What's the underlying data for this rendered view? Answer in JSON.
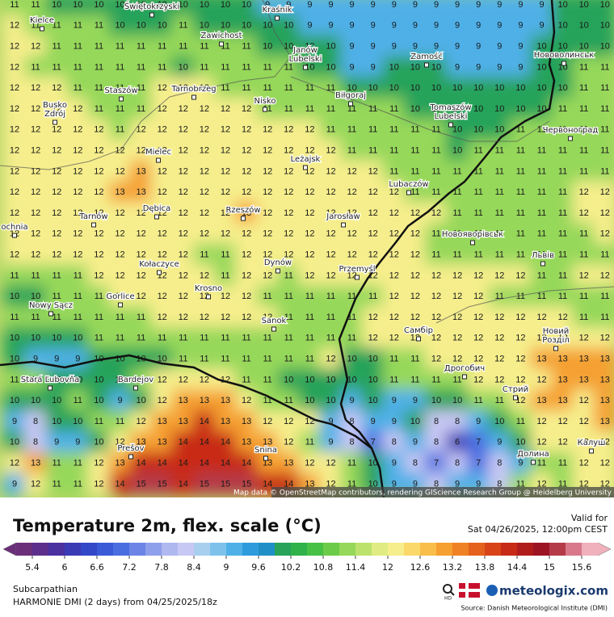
{
  "map": {
    "grid_values": [
      [
        11,
        11,
        10,
        10,
        10,
        10,
        10,
        10,
        10,
        10,
        10,
        10,
        9,
        9,
        9,
        9,
        9,
        9,
        9,
        9,
        9,
        9,
        9,
        9,
        9,
        9,
        10,
        10,
        10
      ],
      [
        12,
        11,
        11,
        11,
        11,
        10,
        10,
        10,
        11,
        10,
        10,
        10,
        10,
        10,
        9,
        9,
        9,
        9,
        9,
        9,
        9,
        9,
        9,
        9,
        9,
        9,
        10,
        10,
        10
      ],
      [
        12,
        12,
        11,
        11,
        11,
        11,
        11,
        11,
        11,
        11,
        11,
        11,
        10,
        10,
        10,
        10,
        9,
        9,
        9,
        9,
        9,
        9,
        9,
        9,
        9,
        10,
        10,
        10,
        10
      ],
      [
        12,
        11,
        11,
        11,
        11,
        11,
        11,
        11,
        10,
        11,
        11,
        11,
        11,
        11,
        10,
        10,
        9,
        9,
        10,
        10,
        10,
        9,
        9,
        9,
        9,
        10,
        10,
        11,
        11
      ],
      [
        12,
        12,
        12,
        11,
        11,
        11,
        11,
        12,
        12,
        12,
        11,
        11,
        11,
        11,
        11,
        11,
        10,
        10,
        10,
        10,
        10,
        10,
        10,
        10,
        10,
        10,
        10,
        11,
        11
      ],
      [
        12,
        12,
        12,
        12,
        11,
        11,
        11,
        12,
        12,
        12,
        12,
        12,
        11,
        11,
        11,
        11,
        11,
        11,
        11,
        10,
        10,
        10,
        10,
        10,
        10,
        10,
        11,
        11,
        11
      ],
      [
        12,
        12,
        12,
        12,
        12,
        11,
        12,
        12,
        12,
        12,
        12,
        12,
        12,
        12,
        12,
        11,
        11,
        11,
        11,
        11,
        11,
        10,
        10,
        10,
        11,
        11,
        11,
        11,
        11
      ],
      [
        12,
        12,
        12,
        12,
        12,
        12,
        12,
        12,
        12,
        12,
        12,
        12,
        12,
        12,
        12,
        12,
        11,
        11,
        11,
        11,
        11,
        10,
        11,
        11,
        11,
        11,
        11,
        11,
        11
      ],
      [
        12,
        12,
        12,
        12,
        12,
        12,
        13,
        12,
        12,
        12,
        12,
        12,
        12,
        12,
        12,
        12,
        12,
        12,
        11,
        11,
        11,
        11,
        11,
        11,
        11,
        11,
        11,
        11,
        11
      ],
      [
        12,
        12,
        12,
        12,
        12,
        13,
        13,
        12,
        12,
        12,
        12,
        12,
        12,
        12,
        12,
        12,
        12,
        12,
        12,
        11,
        11,
        11,
        11,
        11,
        11,
        11,
        11,
        12,
        12
      ],
      [
        12,
        12,
        12,
        12,
        12,
        12,
        12,
        12,
        12,
        12,
        12,
        13,
        12,
        12,
        12,
        12,
        12,
        12,
        12,
        12,
        12,
        11,
        11,
        11,
        11,
        11,
        11,
        12,
        12
      ],
      [
        12,
        12,
        12,
        12,
        12,
        12,
        12,
        12,
        12,
        12,
        12,
        12,
        12,
        12,
        12,
        12,
        12,
        12,
        12,
        12,
        11,
        11,
        11,
        11,
        11,
        11,
        11,
        11,
        12
      ],
      [
        12,
        12,
        12,
        12,
        12,
        12,
        12,
        12,
        12,
        11,
        11,
        12,
        12,
        12,
        12,
        12,
        12,
        12,
        12,
        12,
        11,
        11,
        11,
        11,
        11,
        11,
        11,
        11,
        11
      ],
      [
        11,
        11,
        11,
        11,
        12,
        12,
        12,
        12,
        12,
        12,
        11,
        12,
        12,
        11,
        12,
        12,
        12,
        12,
        12,
        12,
        12,
        12,
        12,
        12,
        12,
        11,
        11,
        12,
        12
      ],
      [
        10,
        10,
        11,
        11,
        11,
        12,
        12,
        12,
        12,
        12,
        12,
        12,
        11,
        11,
        11,
        11,
        11,
        11,
        12,
        12,
        12,
        12,
        12,
        11,
        11,
        11,
        11,
        11,
        11
      ],
      [
        11,
        11,
        11,
        11,
        11,
        11,
        11,
        12,
        12,
        12,
        12,
        12,
        12,
        11,
        11,
        11,
        11,
        12,
        12,
        12,
        12,
        12,
        12,
        12,
        12,
        12,
        12,
        11,
        11
      ],
      [
        10,
        10,
        10,
        10,
        11,
        11,
        11,
        11,
        11,
        11,
        11,
        11,
        11,
        11,
        11,
        11,
        11,
        12,
        12,
        12,
        12,
        12,
        12,
        12,
        12,
        12,
        12,
        12,
        12
      ],
      [
        10,
        9,
        9,
        9,
        10,
        10,
        10,
        10,
        11,
        11,
        11,
        11,
        11,
        11,
        11,
        12,
        10,
        10,
        11,
        11,
        12,
        12,
        12,
        12,
        12,
        13,
        13,
        13,
        13
      ],
      [
        11,
        11,
        10,
        10,
        10,
        10,
        11,
        12,
        12,
        12,
        12,
        11,
        11,
        10,
        10,
        10,
        10,
        10,
        11,
        11,
        11,
        11,
        12,
        12,
        12,
        12,
        13,
        13,
        13
      ],
      [
        10,
        10,
        10,
        11,
        10,
        9,
        10,
        12,
        13,
        13,
        13,
        12,
        11,
        11,
        10,
        10,
        9,
        10,
        9,
        9,
        10,
        10,
        11,
        11,
        12,
        13,
        13,
        12,
        13
      ],
      [
        9,
        8,
        10,
        10,
        11,
        11,
        12,
        13,
        13,
        14,
        13,
        13,
        12,
        12,
        12,
        9,
        8,
        9,
        9,
        10,
        8,
        8,
        9,
        10,
        11,
        12,
        12,
        12,
        13
      ],
      [
        10,
        8,
        9,
        9,
        10,
        12,
        13,
        13,
        14,
        14,
        14,
        13,
        13,
        12,
        11,
        9,
        8,
        7,
        8,
        9,
        8,
        6,
        7,
        9,
        10,
        12,
        12,
        12,
        12
      ],
      [
        12,
        13,
        11,
        11,
        12,
        13,
        14,
        14,
        14,
        14,
        14,
        14,
        13,
        13,
        12,
        12,
        11,
        10,
        9,
        8,
        7,
        8,
        7,
        8,
        9,
        11,
        11,
        12,
        12
      ],
      [
        9,
        12,
        11,
        11,
        12,
        14,
        15,
        15,
        14,
        15,
        15,
        15,
        14,
        14,
        13,
        12,
        11,
        10,
        9,
        9,
        8,
        9,
        9,
        8,
        11,
        12,
        11,
        12,
        12
      ]
    ],
    "places": [
      [
        "Świętokrzyski"
      ],
      [
        "Kraśnik"
      ],
      [
        "Kielce"
      ],
      [
        "Zawichost"
      ],
      [
        "Janów",
        "Lubelski"
      ],
      [
        "Zamość"
      ],
      [
        "Нововолинськ"
      ],
      [
        "Staszów"
      ],
      [
        "Tarnobrzeg"
      ],
      [
        "Nisko"
      ],
      [
        "Biłgoraj"
      ],
      [
        "Busko",
        "Zdrój"
      ],
      [
        "Tomaszów",
        "Lubelski"
      ],
      [
        "Червоноград"
      ],
      [
        "Mielec"
      ],
      [
        "Leżajsk"
      ],
      [
        "Lubaczów"
      ],
      [
        "Dębica"
      ],
      [
        "Tarnów"
      ],
      [
        "Rzeszów"
      ],
      [
        "Jarosław"
      ],
      [
        "Новояворівськ"
      ],
      [
        "ochnia"
      ],
      [
        "Kołaczyce"
      ],
      [
        "Dynów"
      ],
      [
        "Przemyśl"
      ],
      [
        "Львів"
      ],
      [
        "Gorlice"
      ],
      [
        "Krosno"
      ],
      [
        "Nowy Sącz"
      ],
      [
        "Sanok"
      ],
      [
        "Самбір"
      ],
      [
        "Новий",
        "Розділ"
      ],
      [
        "Stará Ľubovňa"
      ],
      [
        "Bardejov"
      ],
      [
        "Дрогобич"
      ],
      [
        "Стрий"
      ],
      [
        "Prešov"
      ],
      [
        "Snina"
      ],
      [
        "Калуш"
      ],
      [
        "Долина"
      ]
    ],
    "attribution": "Map data © OpenStreetMap contributors, rendering GIScience Research Group @ Heidelberg University"
  },
  "legend": {
    "title": "Temperature 2m, flex. scale (°C)",
    "range": [
      5.1,
      15.9
    ],
    "ticks": [
      5.4,
      6,
      6.6,
      7.2,
      7.8,
      8.4,
      9,
      9.6,
      10.2,
      10.8,
      11.4,
      12,
      12.6,
      13.2,
      13.8,
      14.4,
      15,
      15.6
    ],
    "colors": [
      "#6b2f7a",
      "#5d2e8c",
      "#4b30a0",
      "#3b3ab5",
      "#3348c8",
      "#3a5ad8",
      "#4a6de0",
      "#6b84e6",
      "#8e9fec",
      "#b0b8f0",
      "#c8c8f4",
      "#a9cfef",
      "#7ec2ec",
      "#4fb0e8",
      "#2e9cdc",
      "#1f8fc8",
      "#27a35a",
      "#2fb24a",
      "#47c046",
      "#6ccc4a",
      "#96d85a",
      "#bde26c",
      "#e0ec82",
      "#f6ee8c",
      "#fbd86a",
      "#f9bd4a",
      "#f5a030",
      "#ee8224",
      "#e4621c",
      "#d84418",
      "#c82a18",
      "#b01c1c",
      "#9c1424",
      "#b43a4a",
      "#d8788a",
      "#f0b0bc"
    ]
  },
  "footer": {
    "valid_label": "Valid for",
    "valid_time": "Sat 04/26/2025, 12:00pm CEST",
    "region": "Subcarpathian",
    "model": "HARMONIE DMI (2 days)  from  04/25/2025/18z",
    "hd": "HD",
    "brand": "meteologix.com",
    "source": "Source: Danish Meteorological Institute (DMI)"
  }
}
